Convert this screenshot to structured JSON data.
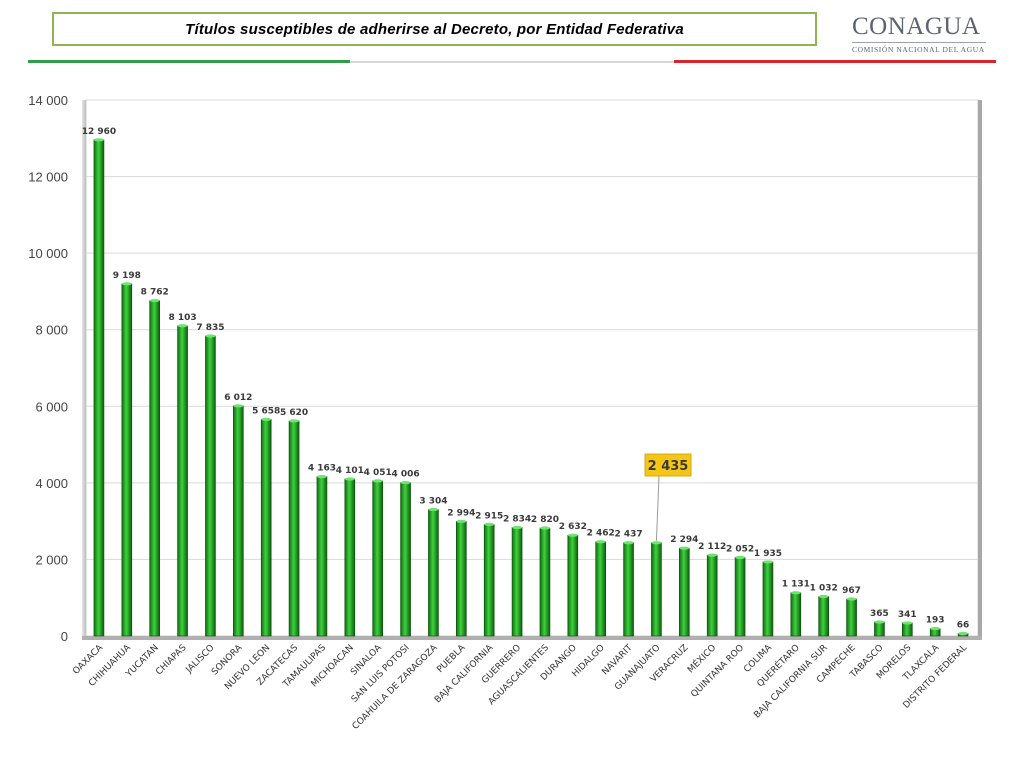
{
  "header": {
    "title": "Títulos susceptibles de adherirse al Decreto, por Entidad Federativa",
    "logo_name": "CONAGUA",
    "logo_sub": "Comisión Nacional del Agua"
  },
  "colors": {
    "accent_green": "#2f9e4a",
    "accent_red": "#d8242b",
    "title_border": "#8db650",
    "bar": "#1f9a1f",
    "callout": "#f5c518"
  },
  "chart_data": {
    "type": "bar",
    "categories": [
      "OAXACA",
      "CHIHUAHUA",
      "YUCATAN",
      "CHIAPAS",
      "JALISCO",
      "SONORA",
      "NUEVO LEON",
      "ZACATECAS",
      "TAMAULIPAS",
      "MICHOACAN",
      "SINALOA",
      "SAN LUIS POTOSI",
      "COAHUILA DE ZARAGOZA",
      "PUEBLA",
      "BAJA CALIFORNIA",
      "GUERRERO",
      "AGUASCALIENTES",
      "DURANGO",
      "HIDALGO",
      "NAVARIT",
      "GUANAJUATO",
      "VERACRUZ",
      "MÉXICO",
      "QUINTANA ROO",
      "COLIMA",
      "QUERÉTARO",
      "BAJA CALIFORNIA SUR",
      "CAMPECHE",
      "TABASCO",
      "MORELOS",
      "TLAXCALA",
      "DISTRITO FEDERAL"
    ],
    "values": [
      12960,
      9198,
      8762,
      8103,
      7835,
      6012,
      5658,
      5620,
      4163,
      4101,
      4051,
      4006,
      3304,
      2994,
      2915,
      2834,
      2820,
      2632,
      2462,
      2437,
      2435,
      2294,
      2112,
      2052,
      1935,
      1131,
      1032,
      967,
      365,
      341,
      193,
      66
    ],
    "value_labels": [
      "12 960",
      "9 198",
      "8 762",
      "8 103",
      "7 835",
      "6 012",
      "5 658",
      "5 620",
      "4 163",
      "4 101",
      "4 051",
      "4 006",
      "3 304",
      "2 994",
      "2 915",
      "2 834",
      "2 820",
      "2 632",
      "2 462",
      "2 437",
      "",
      "2 294",
      "2 112",
      "2 052",
      "1 935",
      "1 131",
      "1 032",
      "967",
      "365",
      "341",
      "193",
      "66"
    ],
    "callout": {
      "category_index": 20,
      "label": "2 435"
    },
    "y_ticks": [
      0,
      2000,
      4000,
      6000,
      8000,
      10000,
      12000,
      14000
    ],
    "y_tick_labels": [
      "0",
      "2 000",
      "4 000",
      "6 000",
      "8 000",
      "10 000",
      "12 000",
      "14 000"
    ],
    "ylim": [
      0,
      14000
    ],
    "grid": true,
    "legend": "none"
  }
}
